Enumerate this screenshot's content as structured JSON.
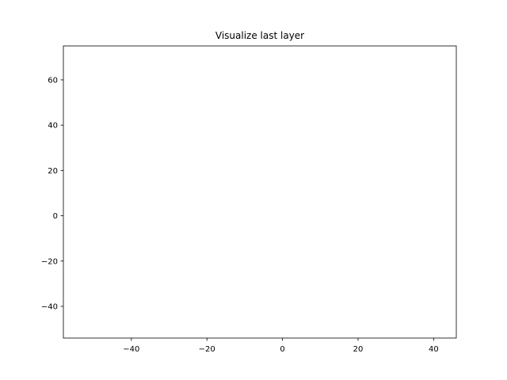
{
  "chart_data": {
    "type": "scatter",
    "title": "Visualize last layer",
    "xlabel": "",
    "ylabel": "",
    "xlim": [
      -58,
      46
    ],
    "ylim": [
      -54,
      75
    ],
    "xticks": [
      -40,
      -20,
      0,
      20,
      40
    ],
    "yticks": [
      -40,
      -20,
      0,
      20,
      40,
      60
    ],
    "xtick_labels": [
      "−40",
      "−20",
      "0",
      "20",
      "40"
    ],
    "ytick_labels": [
      "−40",
      "−20",
      "0",
      "20",
      "40",
      "60"
    ],
    "grid": false,
    "series": [
      {
        "x": [],
        "y": []
      }
    ]
  },
  "colors": {
    "axes_edge": "#000000",
    "background": "#ffffff"
  }
}
